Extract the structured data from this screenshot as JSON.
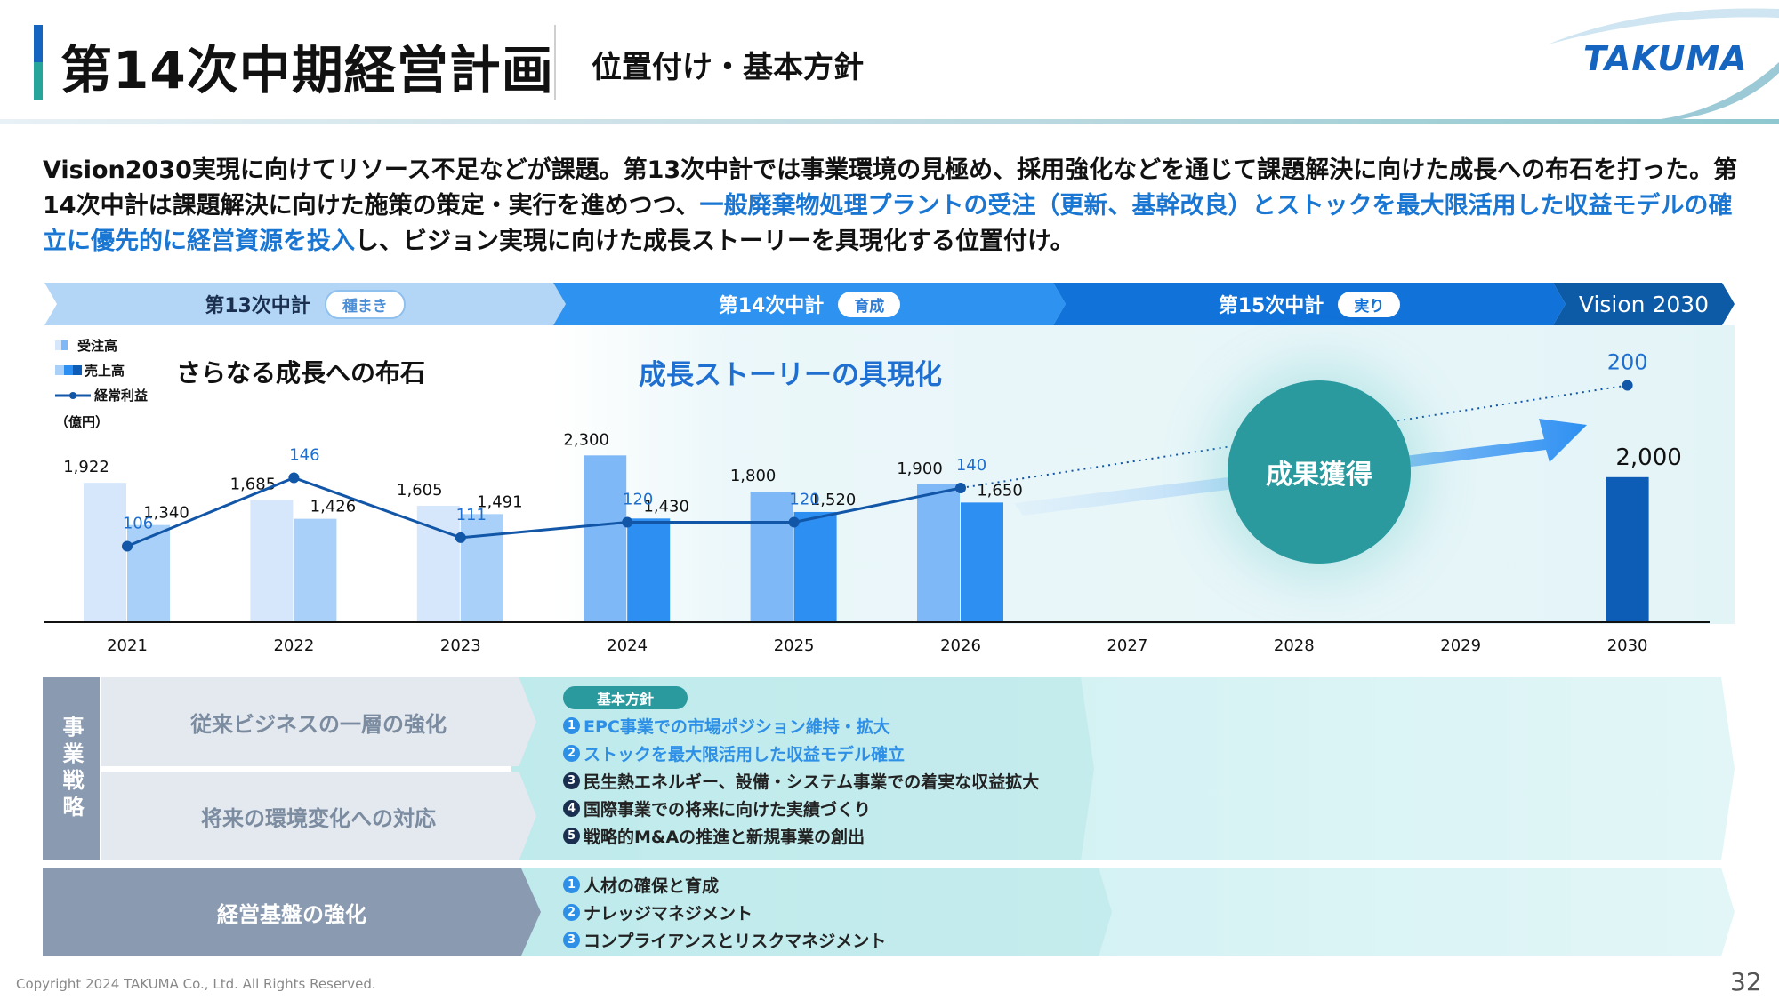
{
  "header": {
    "title": "第14次中期経営計画",
    "subtitle": "位置付け・基本方針",
    "logo": "TAKUMA"
  },
  "lead": {
    "part1": "Vision2030実現に向けてリソース不足などが課題。第13次中計では事業環境の見極め、採用強化などを通じて課題解決に向けた成長への布石を打った。第14次中計は課題解決に向けた施策の策定・実行を進めつつ、",
    "highlight": "一般廃棄物処理プラントの受注（更新、基幹改良）とストックを最大限活用した収益モデルの確立に優先的に経営資源を投入",
    "part2": "し、ビジョン実現に向けた成長ストーリーを具現化する位置付け。"
  },
  "phases": [
    {
      "label": "第13次中計",
      "tag": "種まき"
    },
    {
      "label": "第14次中計",
      "tag": "育成"
    },
    {
      "label": "第15次中計",
      "tag": "実り"
    },
    {
      "label": "Vision 2030",
      "tag": ""
    }
  ],
  "headings": {
    "left": "さらなる成長への布石",
    "center": "成長ストーリーの具現化",
    "circle": "成果獲得"
  },
  "legend": {
    "orders": "受注高",
    "sales": "売上高",
    "profit": "経常利益",
    "unit": "（億円）"
  },
  "chart_data": {
    "type": "bar",
    "categories": [
      "2021",
      "2022",
      "2023",
      "2024",
      "2025",
      "2026",
      "2027",
      "2028",
      "2029",
      "2030"
    ],
    "series": [
      {
        "name": "受注高",
        "values": [
          1922,
          1685,
          1605,
          2300,
          1800,
          1900,
          null,
          null,
          null,
          null
        ]
      },
      {
        "name": "売上高",
        "values": [
          1340,
          1426,
          1491,
          1430,
          1520,
          1650,
          null,
          null,
          null,
          2000
        ]
      },
      {
        "name": "経常利益",
        "type": "line",
        "values": [
          106,
          146,
          111,
          120,
          120,
          140,
          null,
          null,
          null,
          200
        ]
      }
    ],
    "value_labels": {
      "orders": [
        "1,922",
        "1,685",
        "1,605",
        "2,300",
        "1,800",
        "1,900"
      ],
      "sales": [
        "1,340",
        "1,426",
        "1,491",
        "1,430",
        "1,520",
        "1,650"
      ],
      "profit": [
        "106",
        "146",
        "111",
        "120",
        "120",
        "140"
      ],
      "sales_2030": "2,000",
      "profit_2030": "200"
    },
    "colors": {
      "orders": [
        "#d6e7fb",
        "#d6e7fb",
        "#d6e7fb",
        "#7fb8f7",
        "#7fb8f7",
        "#7fb8f7"
      ],
      "sales": [
        "#a8d0f8",
        "#a8d0f8",
        "#a8d0f8",
        "#2d8ff2",
        "#2d8ff2",
        "#2d8ff2"
      ],
      "sales_2030": "#0d5cb6",
      "profit_line": "#1256a8"
    }
  },
  "strategy": {
    "side_label": "事業戦略",
    "box1": "従来ビジネスの一層の強化",
    "box2": "将来の環境変化への対応",
    "foundation": "経営基盤の強化",
    "policy_tag": "基本方針",
    "policies": [
      "EPC事業での市場ポジション維持・拡大",
      "ストックを最大限活用した収益モデル確立",
      "民生熱エネルギー、設備・システム事業での着実な収益拡大",
      "国際事業での将来に向けた実績づくり",
      "戦略的M&Aの推進と新規事業の創出"
    ],
    "policy_nums": [
      "1",
      "2",
      "3",
      "4",
      "5"
    ],
    "foundation_items": [
      "人材の確保と育成",
      "ナレッジマネジメント",
      "コンプライアンスとリスクマネジメント"
    ],
    "foundation_nums": [
      "1",
      "2",
      "3"
    ]
  },
  "footer": {
    "copyright": "Copyright  2024 TAKUMA Co., Ltd.  All Rights Reserved.",
    "page": "32"
  }
}
